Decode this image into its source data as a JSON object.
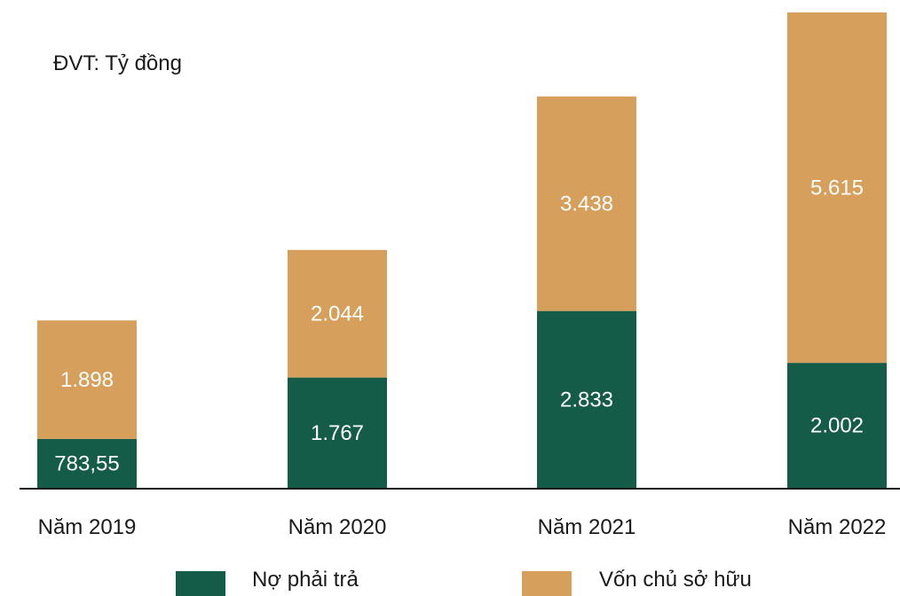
{
  "unit_label": "ĐVT: Tỷ đồng",
  "colors": {
    "debt": "#155c48",
    "equity": "#d69f5b",
    "axis": "#1a1a1a",
    "label_text": "#ffffff"
  },
  "chart_data": {
    "type": "bar",
    "stacked": true,
    "categories": [
      "Năm 2019",
      "Năm 2020",
      "Năm 2021",
      "Năm 2022"
    ],
    "series": [
      {
        "name": "Nợ phải trả",
        "values": [
          783.55,
          1767,
          2833,
          2002
        ],
        "labels": [
          "783,55",
          "1.767",
          "2.833",
          "2.002"
        ]
      },
      {
        "name": "Vốn chủ sở hữu",
        "values": [
          1898,
          2044,
          3438,
          5615
        ],
        "labels": [
          "1.898",
          "2.044",
          "3.438",
          "5.615"
        ]
      }
    ],
    "ylim": [
      0,
      7617
    ],
    "grid": false,
    "legend_position": "bottom"
  }
}
